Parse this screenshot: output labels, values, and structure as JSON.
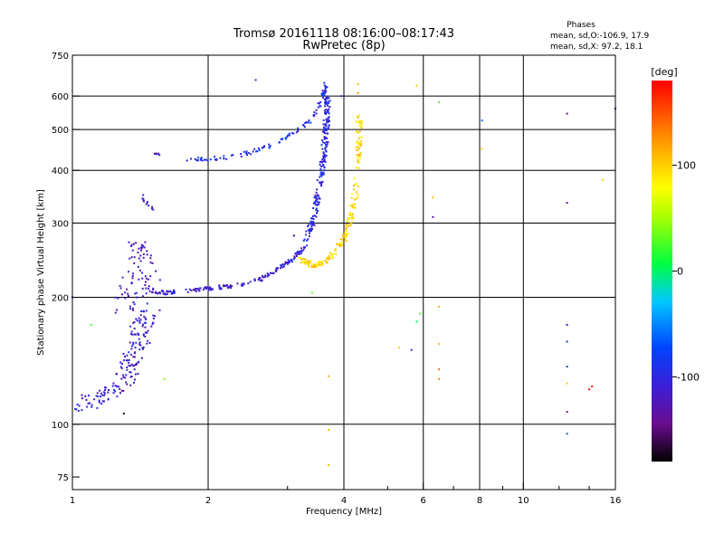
{
  "chart_data": {
    "type": "scatter",
    "title": "Tromsø 20161118 08:16:00–08:17:43",
    "subtitle": "RwPretec (8p)",
    "xlabel": "Frequency [MHz]",
    "ylabel": "Stationary phase Virtual Height [km]",
    "xscale": "log",
    "yscale": "log",
    "xlim": [
      1,
      16
    ],
    "ylim": [
      70,
      750
    ],
    "x_ticks": [
      1,
      2,
      4,
      6,
      8,
      10,
      16
    ],
    "x_tick_labels": [
      "1",
      "2",
      "4",
      "6",
      "8",
      "10",
      "16"
    ],
    "x_minor_ticks": [
      3,
      5,
      7,
      9,
      12,
      14
    ],
    "y_ticks": [
      75,
      100,
      200,
      300,
      400,
      500,
      600,
      750
    ],
    "y_tick_labels": [
      "75",
      "100",
      "200",
      "300",
      "400",
      "500",
      "600",
      "750"
    ],
    "grid": true,
    "stats": {
      "heading": "Phases",
      "line_o": "mean, sd,O:-106.9, 17.9",
      "line_x": "mean, sd,X:  97.2, 18.1"
    },
    "colorbar": {
      "label": "[deg]",
      "range": [
        -180,
        180
      ],
      "ticks": [
        100,
        0,
        -100
      ],
      "tick_labels": [
        "100",
        "0",
        "-100"
      ],
      "colormap": "rainbow"
    },
    "traces": [
      {
        "segments": [
          [
            1.0,
            108
          ],
          [
            1.1,
            113
          ],
          [
            1.2,
            118
          ],
          [
            1.3,
            125
          ],
          [
            1.35,
            140
          ],
          [
            1.4,
            160
          ],
          [
            1.42,
            185
          ],
          [
            1.44,
            210
          ]
        ],
        "phase": -110,
        "jitter": 0.09,
        "n": 140
      },
      {
        "segments": [
          [
            1.3,
            120
          ],
          [
            1.35,
            135
          ],
          [
            1.4,
            150
          ],
          [
            1.45,
            165
          ],
          [
            1.5,
            180
          ]
        ],
        "phase": -115,
        "jitter": 0.09,
        "n": 40
      },
      {
        "segments": [
          [
            1.3,
            190
          ],
          [
            1.35,
            225
          ],
          [
            1.4,
            265
          ],
          [
            1.45,
            240
          ],
          [
            1.5,
            215
          ]
        ],
        "phase": -118,
        "jitter": 0.1,
        "n": 70
      },
      {
        "segments": [
          [
            1.45,
            208
          ],
          [
            1.6,
            205
          ],
          [
            1.8,
            207
          ],
          [
            2.0,
            210
          ],
          [
            2.3,
            213
          ],
          [
            2.6,
            220
          ],
          [
            2.9,
            235
          ],
          [
            3.1,
            248
          ],
          [
            3.3,
            265
          ]
        ],
        "phase": -108,
        "jitter": 0.02,
        "n": 170
      },
      {
        "segments": [
          [
            3.3,
            270
          ],
          [
            3.45,
            320
          ],
          [
            3.55,
            380
          ],
          [
            3.62,
            450
          ],
          [
            3.66,
            520
          ],
          [
            3.68,
            600
          ]
        ],
        "phase": -100,
        "jitter": 0.03,
        "n": 200
      },
      {
        "segments": [
          [
            3.2,
            245
          ],
          [
            3.4,
            238
          ],
          [
            3.6,
            242
          ],
          [
            3.8,
            255
          ],
          [
            4.0,
            275
          ],
          [
            4.15,
            310
          ],
          [
            4.25,
            360
          ],
          [
            4.3,
            420
          ],
          [
            4.32,
            480
          ],
          [
            4.33,
            550
          ]
        ],
        "phase": 95,
        "jitter": 0.03,
        "n": 210
      },
      {
        "segments": [
          [
            1.8,
            425
          ],
          [
            2.0,
            425
          ],
          [
            2.3,
            432
          ],
          [
            2.6,
            448
          ],
          [
            2.9,
            470
          ],
          [
            3.2,
            500
          ],
          [
            3.45,
            540
          ],
          [
            3.6,
            600
          ],
          [
            3.65,
            640
          ]
        ],
        "phase": -95,
        "jitter": 0.02,
        "n": 110
      },
      {
        "segments": [
          [
            1.42,
            350
          ],
          [
            1.47,
            330
          ],
          [
            1.52,
            325
          ]
        ],
        "phase": -115,
        "jitter": 0.02,
        "n": 12
      },
      {
        "segments": [
          [
            1.52,
            440
          ],
          [
            1.58,
            435
          ]
        ],
        "phase": -118,
        "jitter": 0.01,
        "n": 5
      }
    ],
    "isolated_points": [
      {
        "x": 2.55,
        "y": 655,
        "phase": -100
      },
      {
        "x": 3.95,
        "y": 600,
        "phase": -90
      },
      {
        "x": 4.3,
        "y": 640,
        "phase": 110
      },
      {
        "x": 4.3,
        "y": 610,
        "phase": 120
      },
      {
        "x": 5.8,
        "y": 635,
        "phase": 100
      },
      {
        "x": 6.5,
        "y": 580,
        "phase": 30
      },
      {
        "x": 8.1,
        "y": 525,
        "phase": -60
      },
      {
        "x": 8.1,
        "y": 450,
        "phase": 100
      },
      {
        "x": 12.5,
        "y": 545,
        "phase": -140
      },
      {
        "x": 16.0,
        "y": 560,
        "phase": -140
      },
      {
        "x": 15.0,
        "y": 380,
        "phase": 100
      },
      {
        "x": 12.5,
        "y": 335,
        "phase": -140
      },
      {
        "x": 6.3,
        "y": 345,
        "phase": 110
      },
      {
        "x": 6.3,
        "y": 310,
        "phase": -130
      },
      {
        "x": 3.1,
        "y": 280,
        "phase": -160
      },
      {
        "x": 3.4,
        "y": 205,
        "phase": 30
      },
      {
        "x": 5.9,
        "y": 183,
        "phase": 30
      },
      {
        "x": 6.5,
        "y": 190,
        "phase": 110
      },
      {
        "x": 5.8,
        "y": 175,
        "phase": 0
      },
      {
        "x": 6.5,
        "y": 155,
        "phase": 110
      },
      {
        "x": 5.65,
        "y": 150,
        "phase": -100
      },
      {
        "x": 5.3,
        "y": 152,
        "phase": 100
      },
      {
        "x": 6.5,
        "y": 135,
        "phase": 140
      },
      {
        "x": 6.5,
        "y": 128,
        "phase": 130
      },
      {
        "x": 3.7,
        "y": 130,
        "phase": 110
      },
      {
        "x": 3.7,
        "y": 97,
        "phase": 110
      },
      {
        "x": 3.7,
        "y": 80,
        "phase": 110
      },
      {
        "x": 1.1,
        "y": 172,
        "phase": 20
      },
      {
        "x": 1.6,
        "y": 128,
        "phase": 40
      },
      {
        "x": 1.3,
        "y": 106,
        "phase": -170
      },
      {
        "x": 1.0,
        "y": 200,
        "phase": -100
      },
      {
        "x": 12.5,
        "y": 172,
        "phase": -100
      },
      {
        "x": 12.5,
        "y": 157,
        "phase": -80
      },
      {
        "x": 12.5,
        "y": 137,
        "phase": -90
      },
      {
        "x": 12.5,
        "y": 107,
        "phase": -140
      },
      {
        "x": 12.5,
        "y": 95,
        "phase": -60
      },
      {
        "x": 14.0,
        "y": 121,
        "phase": 170
      },
      {
        "x": 12.5,
        "y": 125,
        "phase": 100
      },
      {
        "x": 14.2,
        "y": 123,
        "phase": 180
      }
    ]
  }
}
